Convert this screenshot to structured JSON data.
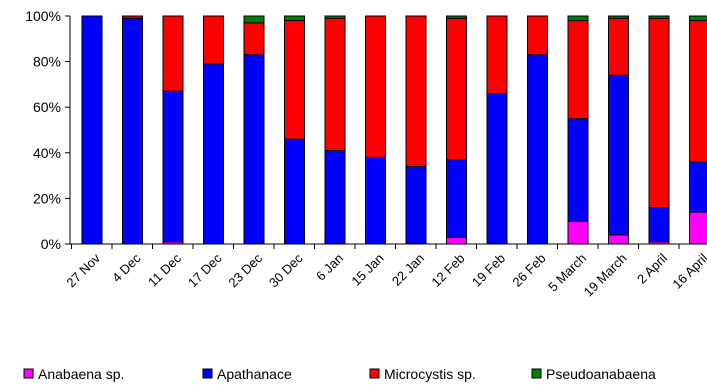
{
  "chart_data": {
    "type": "bar",
    "stacked": "percent",
    "categories": [
      "27 Nov",
      "4 Dec",
      "11 Dec",
      "17 Dec",
      "23 Dec",
      "30 Dec",
      "6 Jan",
      "15 Jan",
      "22 Jan",
      "12 Feb",
      "19 Feb",
      "26 Feb",
      "5 March",
      "19 March",
      "2 April",
      "16 April"
    ],
    "ylim": [
      0,
      100
    ],
    "yticks": [
      "0%",
      "20%",
      "40%",
      "60%",
      "80%",
      "100%"
    ],
    "grid": false,
    "legend_position": "bottom",
    "series": [
      {
        "name": "Anabaena sp.",
        "color": "#ff00ff",
        "values": [
          0,
          0,
          1,
          0,
          0,
          0,
          0,
          0,
          0,
          3,
          0,
          0,
          10,
          4,
          1,
          14
        ]
      },
      {
        "name": "Apathanace",
        "color": "#0000ff",
        "values": [
          100,
          99,
          66,
          79,
          83,
          46,
          41,
          38,
          34,
          34,
          66,
          83,
          45,
          70,
          15,
          22
        ]
      },
      {
        "name": "Microcystis sp.",
        "color": "#ff0000",
        "values": [
          0,
          1,
          33,
          21,
          14,
          52,
          58,
          62,
          66,
          62,
          34,
          17,
          43,
          25,
          83,
          62
        ]
      },
      {
        "name": "Pseudoanabaena",
        "color": "#008000",
        "values": [
          0,
          0,
          0,
          0,
          3,
          2,
          1,
          0,
          0,
          1,
          0,
          0,
          2,
          1,
          1,
          2
        ]
      }
    ]
  }
}
